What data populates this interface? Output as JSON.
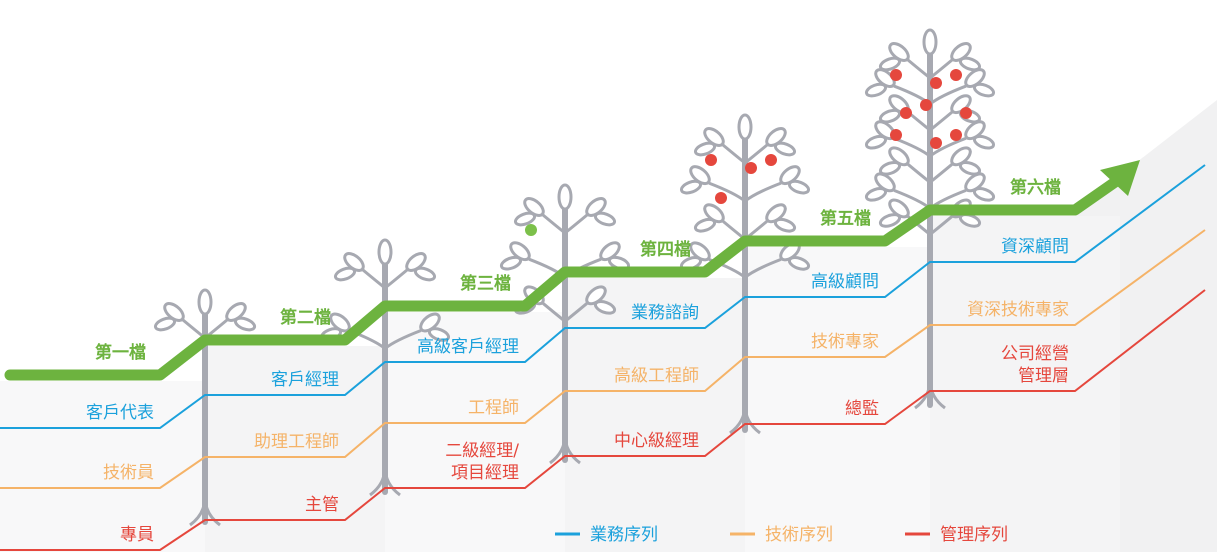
{
  "levels": [
    {
      "name": "第一檔",
      "business": "客戶代表",
      "technical": "技術員",
      "management": [
        "專員"
      ]
    },
    {
      "name": "第二檔",
      "business": "客戶經理",
      "technical": "助理工程師",
      "management": [
        "主管"
      ]
    },
    {
      "name": "第三檔",
      "business": "高級客戶經理",
      "technical": "工程師",
      "management": [
        "二級經理/",
        "項目經理"
      ]
    },
    {
      "name": "第四檔",
      "business": "業務諮詢",
      "technical": "高級工程師",
      "management": [
        "中心級經理"
      ]
    },
    {
      "name": "第五檔",
      "business": "高級顧問",
      "technical": "技術專家",
      "management": [
        "總監"
      ]
    },
    {
      "name": "第六檔",
      "business": "資深顧問",
      "technical": "資深技術專家",
      "management": [
        "公司經營",
        "管理層"
      ]
    }
  ],
  "legend": [
    {
      "label": "業務序列",
      "color": "#1ba1dc"
    },
    {
      "label": "技術序列",
      "color": "#f5b368"
    },
    {
      "label": "管理序列",
      "color": "#e5473d"
    }
  ]
}
